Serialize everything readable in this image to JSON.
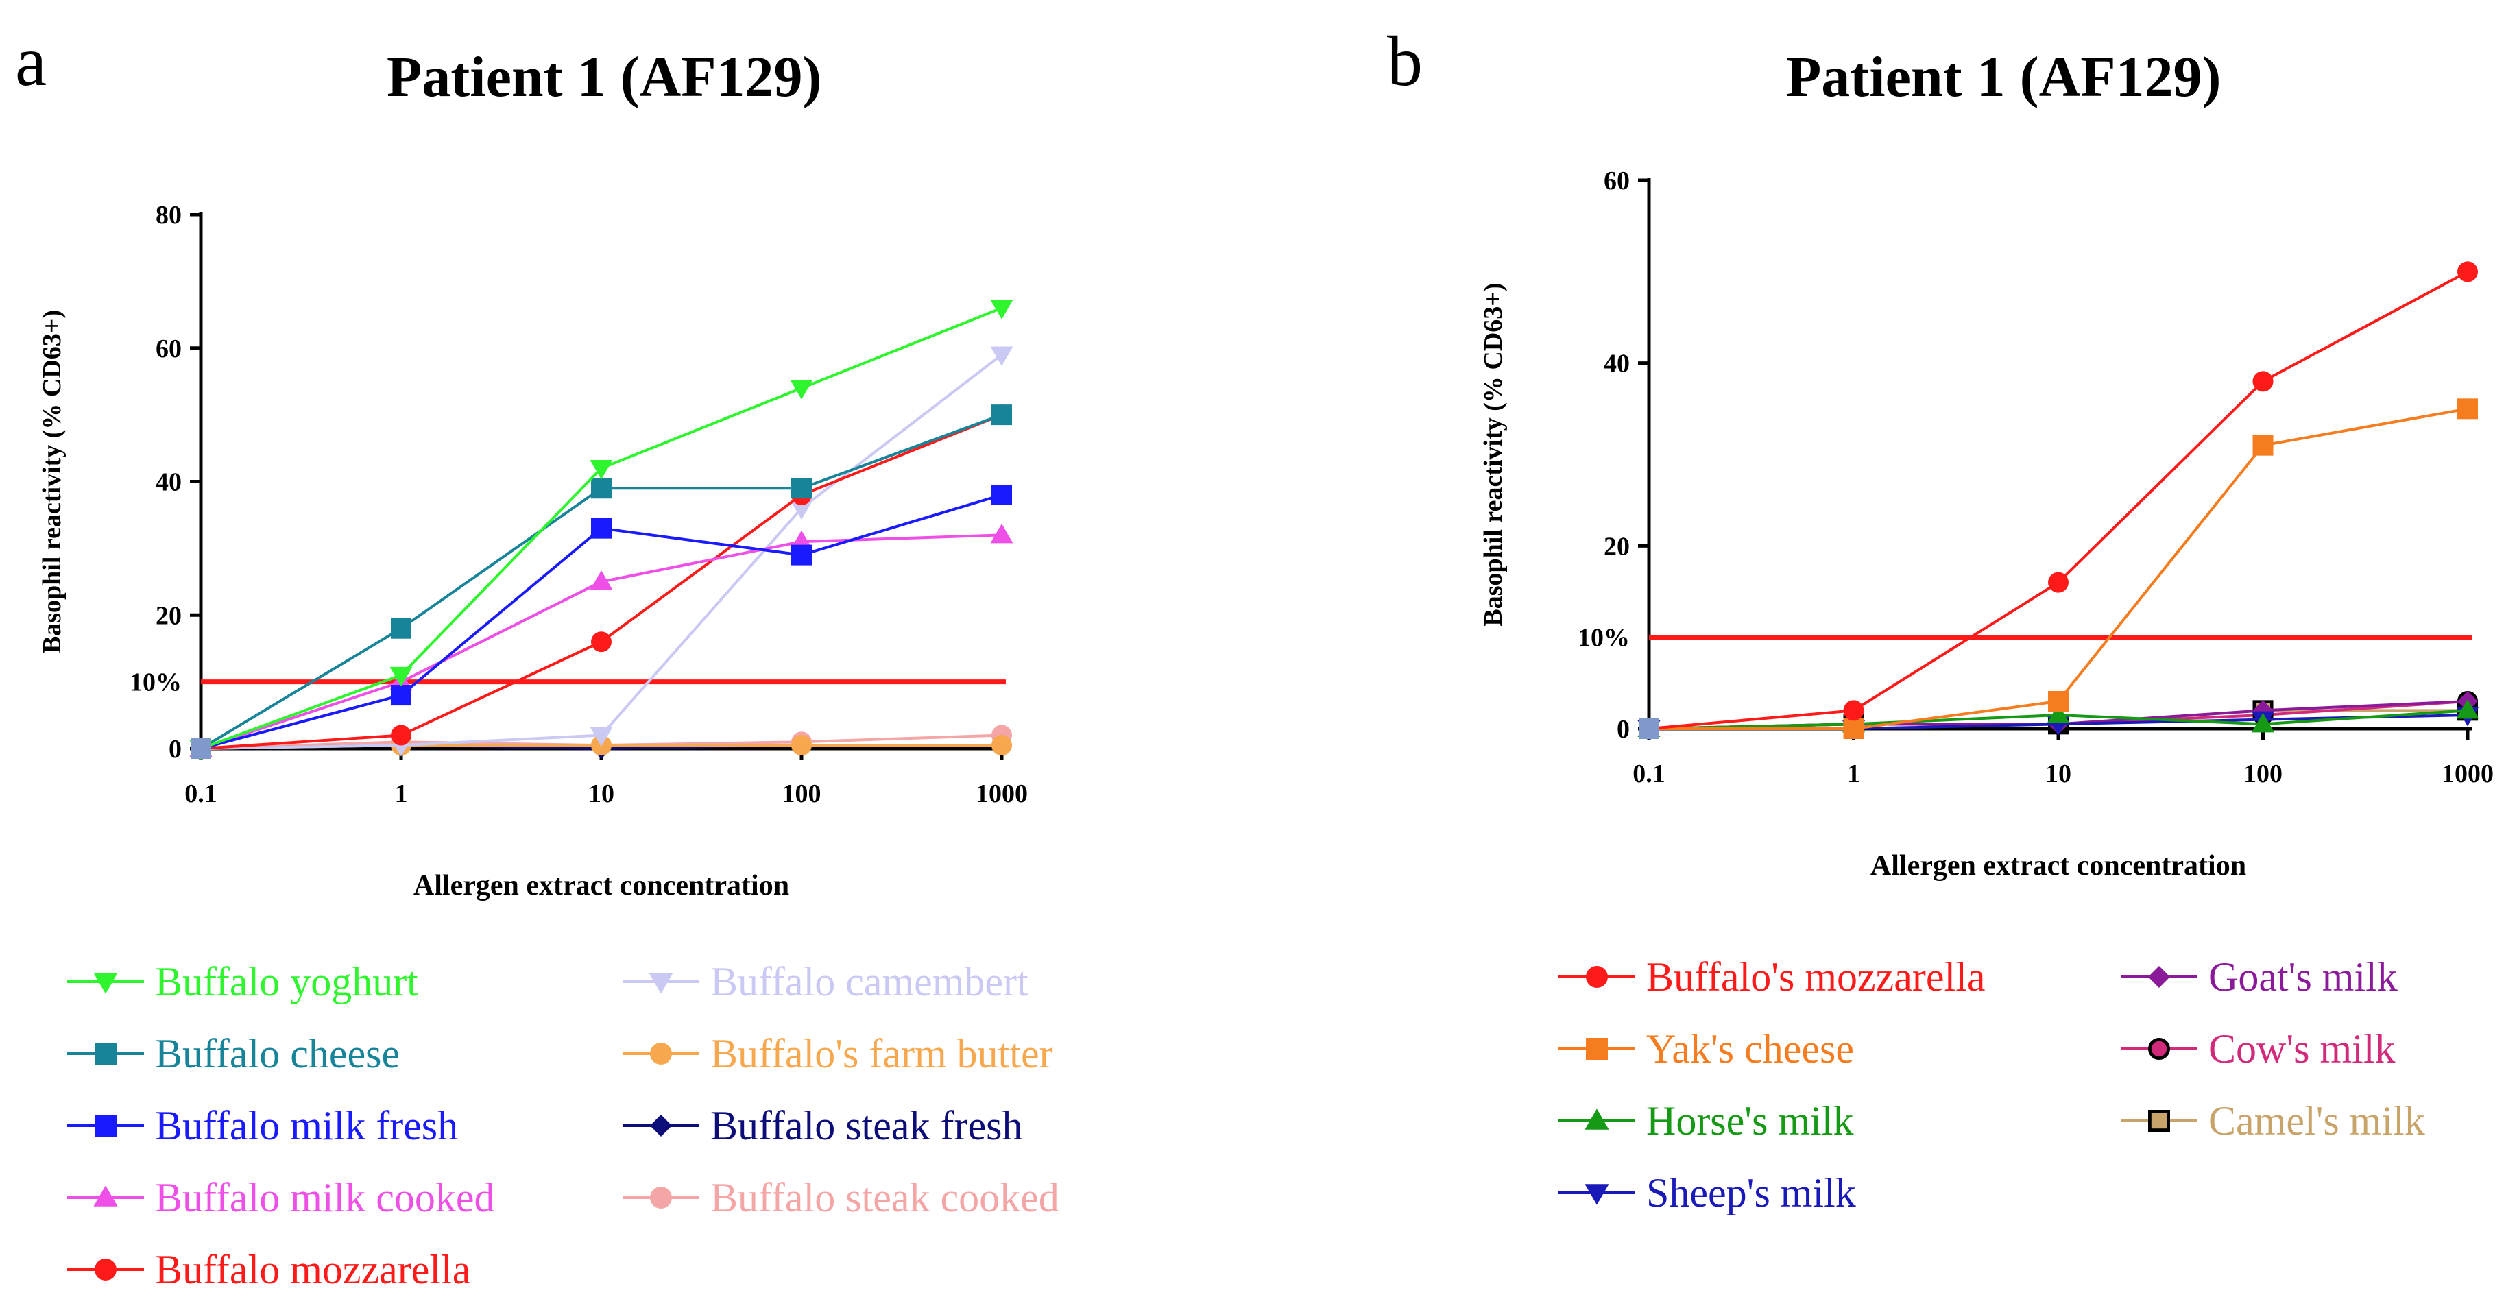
{
  "chart_data": [
    {
      "type": "line",
      "panel_letter": "a",
      "title": "Patient 1 (AF129)",
      "xlabel": "Allergen extract concentration",
      "ylabel": "Basophil reactivity (% CD63+)",
      "x_scale": "log",
      "x": [
        0.1,
        1,
        10,
        100,
        1000
      ],
      "x_tick_labels": [
        "0.1",
        "1",
        "10",
        "100",
        "1000"
      ],
      "ylim": [
        0,
        80
      ],
      "y_ticks": [
        0,
        20,
        40,
        60,
        80
      ],
      "y_tick_labels": [
        "0",
        "20",
        "40",
        "60",
        "80"
      ],
      "threshold": {
        "value": 10,
        "label": "10%",
        "color": "#ff1a1a"
      },
      "legend_position": "bottom",
      "series": [
        {
          "name": "Buffalo yoghurt",
          "color": "#2ef52e",
          "marker": "triangle-down",
          "values": [
            0,
            11,
            42,
            54,
            66
          ]
        },
        {
          "name": "Buffalo cheese",
          "color": "#17849a",
          "marker": "square",
          "values": [
            0,
            18,
            39,
            39,
            50
          ]
        },
        {
          "name": "Buffalo milk fresh",
          "color": "#1a1aff",
          "marker": "square",
          "values": [
            0,
            8,
            33,
            29,
            38
          ]
        },
        {
          "name": "Buffalo milk cooked",
          "color": "#ee4fe6",
          "marker": "triangle-up",
          "values": [
            0,
            10,
            25,
            31,
            32
          ]
        },
        {
          "name": "Buffalo mozzarella",
          "color": "#ff1a1a",
          "marker": "circle",
          "values": [
            0,
            2,
            16,
            38,
            50
          ]
        },
        {
          "name": "Buffalo camembert",
          "color": "#c9c9f4",
          "marker": "triangle-down",
          "values": [
            0,
            0.5,
            2,
            36,
            59
          ]
        },
        {
          "name": "Buffalo's farm butter",
          "color": "#f7a84e",
          "marker": "circle",
          "values": [
            0,
            0.5,
            0.5,
            0.5,
            0.5
          ]
        },
        {
          "name": "Buffalo steak fresh",
          "color": "#0d0d7a",
          "marker": "diamond",
          "values": [
            0,
            0.5,
            0,
            0.5,
            0.5
          ]
        },
        {
          "name": "Buffalo steak cooked",
          "color": "#f4a5a5",
          "marker": "circle",
          "values": [
            0,
            1,
            0.5,
            1,
            2
          ]
        }
      ]
    },
    {
      "type": "line",
      "panel_letter": "b",
      "title": "Patient 1 (AF129)",
      "xlabel": "Allergen extract concentration",
      "ylabel": "Basophil reactivity (% CD63+)",
      "x_scale": "log",
      "x": [
        0.1,
        1,
        10,
        100,
        1000
      ],
      "x_tick_labels": [
        "0.1",
        "1",
        "10",
        "100",
        "1000"
      ],
      "ylim": [
        0,
        60
      ],
      "y_ticks": [
        0,
        20,
        40,
        60
      ],
      "y_tick_labels": [
        "0",
        "20",
        "40",
        "60"
      ],
      "threshold": {
        "value": 10,
        "label": "10%",
        "color": "#ff1a1a"
      },
      "legend_position": "bottom",
      "series": [
        {
          "name": "Buffalo's mozzarella",
          "color": "#ff1a1a",
          "marker": "circle",
          "values": [
            0,
            2,
            16,
            38,
            50
          ]
        },
        {
          "name": "Yak's cheese",
          "color": "#f57c1f",
          "marker": "square",
          "values": [
            0,
            0,
            3,
            31,
            35
          ]
        },
        {
          "name": "Horse's milk",
          "color": "#169a16",
          "marker": "triangle-up",
          "values": [
            0,
            0.5,
            1.5,
            0.5,
            2
          ]
        },
        {
          "name": "Sheep's milk",
          "color": "#1a1ab8",
          "marker": "triangle-down",
          "values": [
            0,
            0,
            0.5,
            1,
            1.5
          ]
        },
        {
          "name": "Goat's milk",
          "color": "#8a1a9a",
          "marker": "diamond",
          "values": [
            0,
            0.5,
            0.5,
            2,
            3
          ]
        },
        {
          "name": "Cow's milk",
          "color": "#d12a7a",
          "marker": "circle-ring",
          "values": [
            0,
            0.5,
            0.5,
            1.5,
            3
          ]
        },
        {
          "name": "Camel's milk",
          "color": "#c9a46a",
          "marker": "square-ring",
          "values": [
            0,
            0.5,
            0.5,
            2,
            2
          ]
        }
      ]
    }
  ]
}
